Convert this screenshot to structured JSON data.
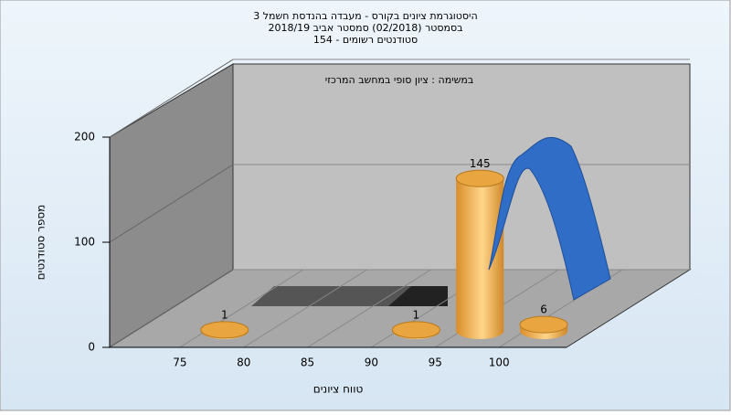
{
  "chart_data": {
    "type": "bar",
    "title": [
      "היסטוגרמת ציונים בקורס - מעבדה בהנדסת חשמל 3",
      "בסמסטר  (02/2018)  סמסטר אביב 2018/19",
      "סטודנטים רשומים - 154"
    ],
    "subtitle": "במשימה : ציון סופי במחשב המרכזי",
    "x_label": "טווח ציונים",
    "y_label": "מספר סטודנטים",
    "x": [
      77.5,
      92.5,
      97.5,
      102.5
    ],
    "values": [
      1,
      1,
      145,
      6
    ],
    "color": "#e8a540",
    "xlim": [
      70,
      105
    ],
    "xticks": [
      75,
      80,
      85,
      90,
      95,
      100
    ],
    "ylim": [
      0,
      200
    ],
    "yticks": [
      0,
      100,
      200
    ],
    "grid": true
  }
}
